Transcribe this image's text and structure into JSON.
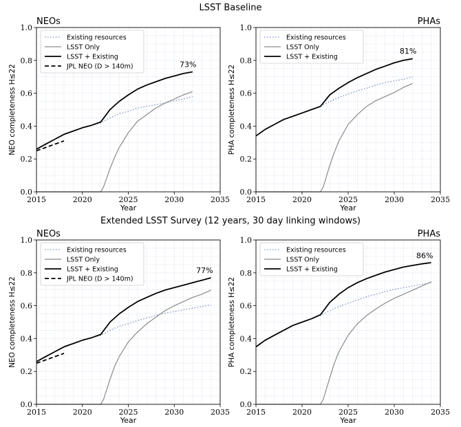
{
  "suptitles": [
    "LSST Baseline",
    "Extended LSST Survey (12 years, 30 day linking windows)"
  ],
  "chart_data": [
    {
      "type": "line",
      "title_left": "NEOs",
      "xlabel": "Year",
      "ylabel": "NEO completeness H≤22",
      "xlim": [
        2015,
        2035
      ],
      "ylim": [
        0,
        1.0
      ],
      "xticks": [
        "2015",
        "2020",
        "2025",
        "2030",
        "2035"
      ],
      "yticks": [
        "0.0",
        "0.2",
        "0.4",
        "0.6",
        "0.8",
        "1.0"
      ],
      "grid": true,
      "legend_position": "top-left",
      "annotation": {
        "text": "73%",
        "x": 2031.5,
        "y": 0.76
      },
      "series": [
        {
          "name": "Existing resources",
          "style": "dotted",
          "color": "#7a8ec4",
          "x": [
            2015,
            2016,
            2017,
            2018,
            2019,
            2020,
            2021,
            2022,
            2023,
            2024,
            2025,
            2026,
            2027,
            2028,
            2029,
            2030,
            2031,
            2032
          ],
          "y": [
            0.26,
            0.29,
            0.32,
            0.35,
            0.37,
            0.39,
            0.405,
            0.42,
            0.45,
            0.475,
            0.49,
            0.51,
            0.52,
            0.53,
            0.54,
            0.555,
            0.565,
            0.58
          ]
        },
        {
          "name": "LSST Only",
          "style": "solid",
          "color": "#8a8a8a",
          "x": [
            2015,
            2022.0,
            2022.3,
            2023,
            2023.5,
            2024,
            2025,
            2026,
            2027,
            2028,
            2029,
            2030,
            2031,
            2032
          ],
          "y": [
            0,
            0,
            0.03,
            0.14,
            0.21,
            0.27,
            0.36,
            0.43,
            0.47,
            0.51,
            0.54,
            0.565,
            0.59,
            0.61
          ]
        },
        {
          "name": "LSST + Existing",
          "style": "solid",
          "color": "#000000",
          "x": [
            2015,
            2016,
            2017,
            2018,
            2019,
            2020,
            2021,
            2022,
            2023,
            2024,
            2025,
            2026,
            2027,
            2028,
            2029,
            2030,
            2031,
            2032
          ],
          "y": [
            0.26,
            0.29,
            0.32,
            0.35,
            0.37,
            0.39,
            0.405,
            0.425,
            0.5,
            0.55,
            0.59,
            0.625,
            0.65,
            0.67,
            0.69,
            0.705,
            0.72,
            0.73
          ]
        },
        {
          "name": "JPL NEO (D > 140m)",
          "style": "dashed",
          "color": "#000000",
          "x": [
            2015,
            2016,
            2017,
            2018
          ],
          "y": [
            0.25,
            0.27,
            0.29,
            0.31
          ]
        }
      ]
    },
    {
      "type": "line",
      "title_right": "PHAs",
      "xlabel": "Year",
      "ylabel": "PHA completeness H≤22",
      "xlim": [
        2015,
        2035
      ],
      "ylim": [
        0,
        1.0
      ],
      "xticks": [
        "2015",
        "2020",
        "2025",
        "2030",
        "2035"
      ],
      "yticks": [
        "0.0",
        "0.2",
        "0.4",
        "0.6",
        "0.8",
        "1.0"
      ],
      "grid": true,
      "legend_position": "top-left",
      "annotation": {
        "text": "81%",
        "x": 2031.5,
        "y": 0.84
      },
      "series": [
        {
          "name": "Existing resources",
          "style": "dotted",
          "color": "#7a8ec4",
          "x": [
            2015,
            2016,
            2017,
            2018,
            2019,
            2020,
            2021,
            2022,
            2023,
            2024,
            2025,
            2026,
            2027,
            2028,
            2029,
            2030,
            2031,
            2032
          ],
          "y": [
            0.34,
            0.38,
            0.41,
            0.44,
            0.46,
            0.48,
            0.5,
            0.52,
            0.55,
            0.575,
            0.595,
            0.615,
            0.63,
            0.65,
            0.665,
            0.675,
            0.685,
            0.7
          ]
        },
        {
          "name": "LSST Only",
          "style": "solid",
          "color": "#8a8a8a",
          "x": [
            2015,
            2022.0,
            2022.3,
            2023,
            2023.5,
            2024,
            2025,
            2026,
            2027,
            2028,
            2029,
            2030,
            2031,
            2032
          ],
          "y": [
            0,
            0,
            0.03,
            0.16,
            0.24,
            0.31,
            0.41,
            0.47,
            0.52,
            0.555,
            0.58,
            0.605,
            0.635,
            0.66
          ]
        },
        {
          "name": "LSST + Existing",
          "style": "solid",
          "color": "#000000",
          "x": [
            2015,
            2016,
            2017,
            2018,
            2019,
            2020,
            2021,
            2022,
            2023,
            2024,
            2025,
            2026,
            2027,
            2028,
            2029,
            2030,
            2031,
            2032
          ],
          "y": [
            0.34,
            0.38,
            0.41,
            0.44,
            0.46,
            0.48,
            0.5,
            0.52,
            0.59,
            0.63,
            0.665,
            0.695,
            0.72,
            0.745,
            0.765,
            0.785,
            0.8,
            0.81
          ]
        }
      ]
    },
    {
      "type": "line",
      "title_left": "NEOs",
      "xlabel": "Year",
      "ylabel": "NEO completeness H≤22",
      "xlim": [
        2015,
        2035
      ],
      "ylim": [
        0,
        1.0
      ],
      "xticks": [
        "2015",
        "2020",
        "2025",
        "2030",
        "2035"
      ],
      "yticks": [
        "0.0",
        "0.2",
        "0.4",
        "0.6",
        "0.8",
        "1.0"
      ],
      "grid": true,
      "legend_position": "top-left",
      "annotation": {
        "text": "77%",
        "x": 2033.3,
        "y": 0.8
      },
      "series": [
        {
          "name": "Existing resources",
          "style": "dotted",
          "color": "#7a8ec4",
          "x": [
            2015,
            2016,
            2017,
            2018,
            2019,
            2020,
            2021,
            2022,
            2023,
            2024,
            2025,
            2026,
            2027,
            2028,
            2029,
            2030,
            2031,
            2032,
            2033,
            2034
          ],
          "y": [
            0.26,
            0.29,
            0.32,
            0.35,
            0.37,
            0.39,
            0.405,
            0.42,
            0.45,
            0.475,
            0.49,
            0.51,
            0.525,
            0.54,
            0.555,
            0.565,
            0.575,
            0.585,
            0.595,
            0.605
          ]
        },
        {
          "name": "LSST Only",
          "style": "solid",
          "color": "#8a8a8a",
          "x": [
            2015,
            2022.0,
            2022.3,
            2023,
            2023.5,
            2024,
            2025,
            2026,
            2027,
            2028,
            2029,
            2030,
            2031,
            2032,
            2033,
            2034
          ],
          "y": [
            0,
            0,
            0.03,
            0.15,
            0.23,
            0.29,
            0.38,
            0.44,
            0.49,
            0.53,
            0.57,
            0.6,
            0.625,
            0.65,
            0.67,
            0.695
          ]
        },
        {
          "name": "LSST + Existing",
          "style": "solid",
          "color": "#000000",
          "x": [
            2015,
            2016,
            2017,
            2018,
            2019,
            2020,
            2021,
            2022,
            2023,
            2024,
            2025,
            2026,
            2027,
            2028,
            2029,
            2030,
            2031,
            2032,
            2033,
            2034
          ],
          "y": [
            0.26,
            0.29,
            0.32,
            0.35,
            0.37,
            0.39,
            0.405,
            0.425,
            0.5,
            0.55,
            0.59,
            0.625,
            0.65,
            0.675,
            0.695,
            0.71,
            0.725,
            0.74,
            0.755,
            0.77
          ]
        },
        {
          "name": "JPL NEO (D > 140m)",
          "style": "dashed",
          "color": "#000000",
          "x": [
            2015,
            2016,
            2017,
            2018
          ],
          "y": [
            0.25,
            0.27,
            0.29,
            0.31
          ]
        }
      ]
    },
    {
      "type": "line",
      "title_right": "PHAs",
      "xlabel": "Year",
      "ylabel": "PHA completeness H≤22",
      "xlim": [
        2015,
        2035
      ],
      "ylim": [
        0,
        1.0
      ],
      "xticks": [
        "2015",
        "2020",
        "2025",
        "2030",
        "2035"
      ],
      "yticks": [
        "0.0",
        "0.2",
        "0.4",
        "0.6",
        "0.8",
        "1.0"
      ],
      "grid": true,
      "legend_position": "top-left",
      "annotation": {
        "text": "86%",
        "x": 2033.3,
        "y": 0.89
      },
      "series": [
        {
          "name": "Existing resources",
          "style": "dotted",
          "color": "#7a8ec4",
          "x": [
            2015,
            2016,
            2017,
            2018,
            2019,
            2020,
            2021,
            2022,
            2023,
            2024,
            2025,
            2026,
            2027,
            2028,
            2029,
            2030,
            2031,
            2032,
            2033,
            2034
          ],
          "y": [
            0.35,
            0.39,
            0.42,
            0.45,
            0.48,
            0.5,
            0.52,
            0.54,
            0.57,
            0.595,
            0.615,
            0.635,
            0.655,
            0.67,
            0.685,
            0.7,
            0.71,
            0.72,
            0.73,
            0.74
          ]
        },
        {
          "name": "LSST Only",
          "style": "solid",
          "color": "#8a8a8a",
          "x": [
            2015,
            2022.0,
            2022.3,
            2023,
            2023.5,
            2024,
            2025,
            2026,
            2027,
            2028,
            2029,
            2030,
            2031,
            2032,
            2033,
            2034
          ],
          "y": [
            0,
            0,
            0.03,
            0.16,
            0.25,
            0.32,
            0.42,
            0.49,
            0.54,
            0.58,
            0.615,
            0.645,
            0.67,
            0.695,
            0.72,
            0.745
          ]
        },
        {
          "name": "LSST + Existing",
          "style": "solid",
          "color": "#000000",
          "x": [
            2015,
            2016,
            2017,
            2018,
            2019,
            2020,
            2021,
            2022,
            2023,
            2024,
            2025,
            2026,
            2027,
            2028,
            2029,
            2030,
            2031,
            2032,
            2033,
            2034
          ],
          "y": [
            0.35,
            0.39,
            0.42,
            0.45,
            0.48,
            0.5,
            0.52,
            0.545,
            0.62,
            0.67,
            0.71,
            0.74,
            0.765,
            0.785,
            0.805,
            0.82,
            0.835,
            0.845,
            0.855,
            0.862
          ]
        }
      ]
    }
  ]
}
